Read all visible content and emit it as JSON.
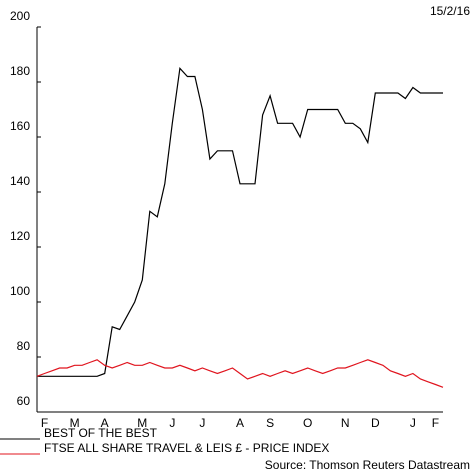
{
  "chart_data": {
    "type": "line",
    "date": "15/2/16",
    "source": "Source: Thomson Reuters Datastream",
    "categories": [
      null,
      "F",
      null,
      null,
      null,
      "M",
      null,
      null,
      null,
      "A",
      null,
      null,
      null,
      null,
      "M",
      null,
      null,
      null,
      "J",
      null,
      null,
      null,
      "J",
      null,
      null,
      null,
      null,
      "A",
      null,
      null,
      null,
      "S",
      null,
      null,
      null,
      null,
      "O",
      null,
      null,
      null,
      null,
      "N",
      null,
      null,
      null,
      "D",
      null,
      null,
      null,
      null,
      "J",
      null,
      null,
      "F",
      null
    ],
    "series": [
      {
        "name": "BEST OF THE BEST",
        "color": "#000000",
        "values": [
          73,
          73,
          73,
          73,
          73,
          73,
          73,
          73,
          73,
          74,
          91,
          90,
          95,
          100,
          108,
          133,
          131,
          143,
          165,
          185,
          182,
          182,
          170,
          152,
          155,
          155,
          155,
          143,
          143,
          143,
          168,
          175,
          165,
          165,
          165,
          160,
          170,
          170,
          170,
          170,
          170,
          165,
          165,
          163,
          158,
          176,
          176,
          176,
          176,
          174,
          178,
          176,
          176,
          176,
          176
        ]
      },
      {
        "name": "FTSE ALL SHARE TRAVEL & LEIS £ - PRICE INDEX",
        "color": "#e0141e",
        "values": [
          73,
          74,
          75,
          76,
          76,
          77,
          77,
          78,
          79,
          77,
          76,
          77,
          78,
          77,
          77,
          78,
          77,
          76,
          76,
          77,
          76,
          75,
          76,
          75,
          74,
          75,
          76,
          74,
          72,
          73,
          74,
          73,
          74,
          75,
          74,
          75,
          76,
          75,
          74,
          75,
          76,
          76,
          77,
          78,
          79,
          78,
          77,
          75,
          74,
          73,
          74,
          72,
          71,
          70,
          69
        ]
      }
    ],
    "ylim": [
      60,
      200
    ],
    "yticks": [
      60,
      80,
      100,
      120,
      140,
      160,
      180,
      200
    ],
    "grid": false
  }
}
